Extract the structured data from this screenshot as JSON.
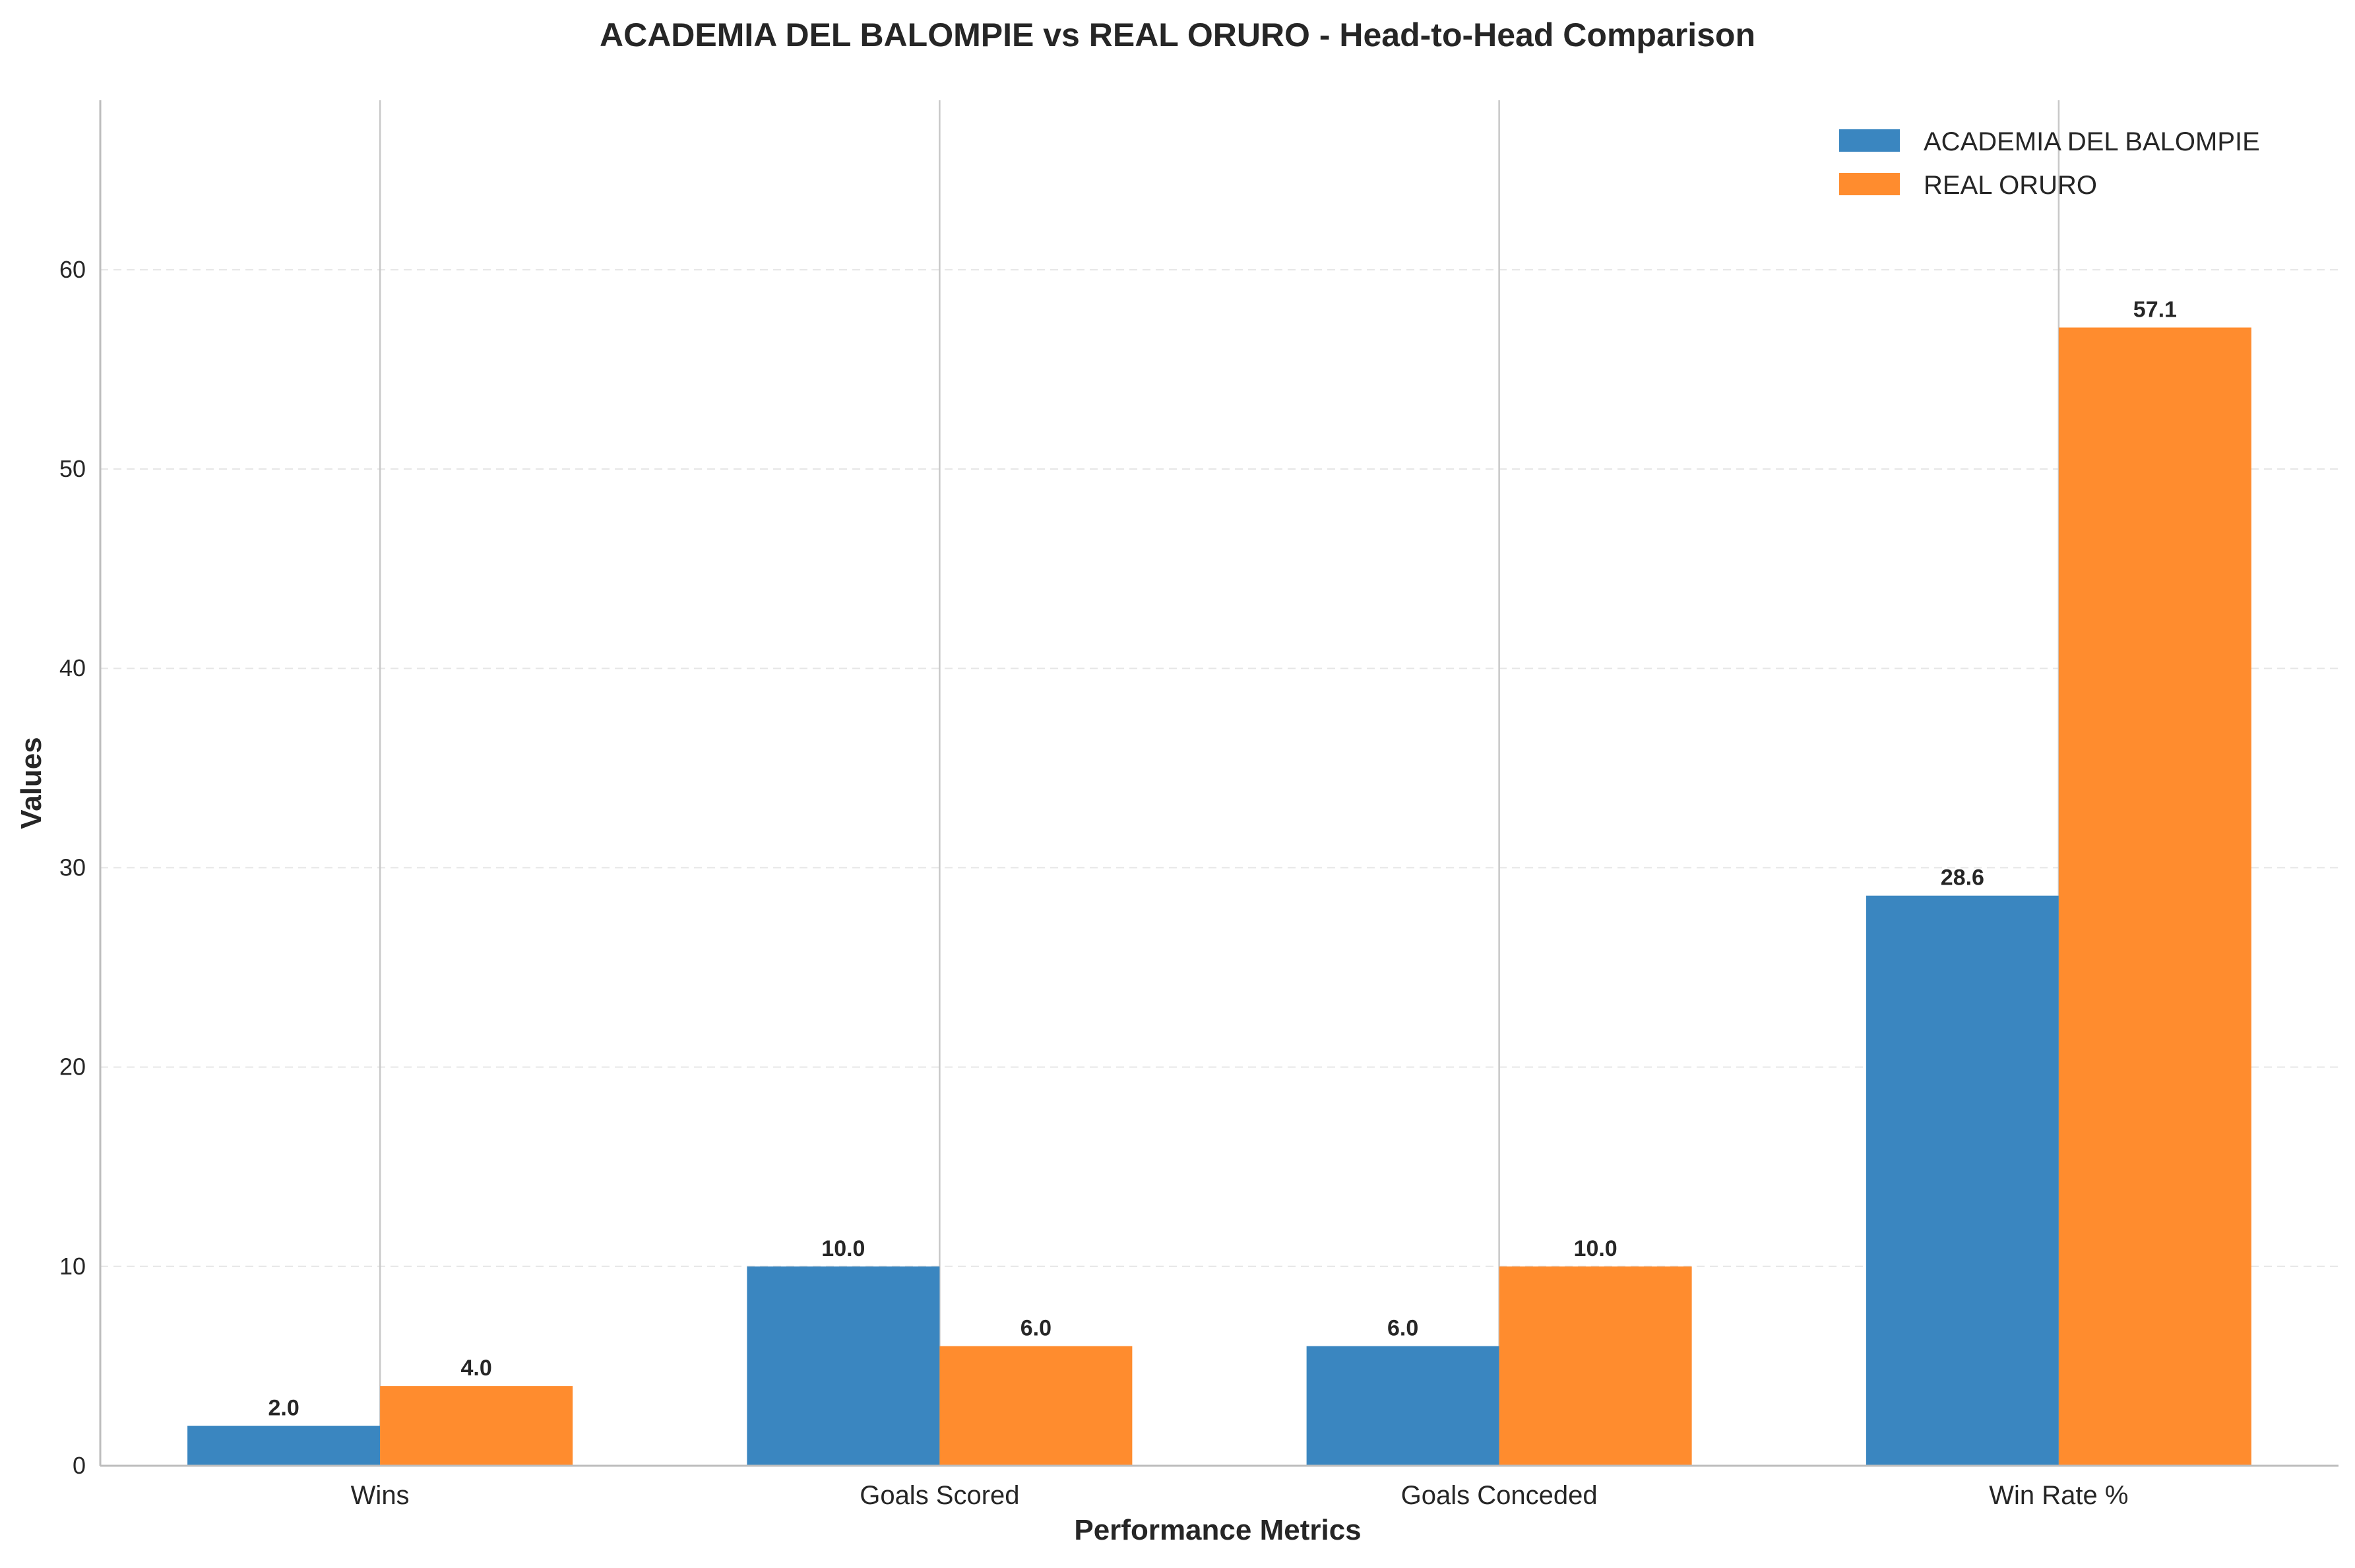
{
  "chart_data": {
    "type": "bar",
    "title": "ACADEMIA DEL BALOMPIE vs REAL ORURO - Head-to-Head Comparison",
    "xlabel": "Performance Metrics",
    "ylabel": "Values",
    "categories": [
      "Wins",
      "Goals Scored",
      "Goals Conceded",
      "Win Rate %"
    ],
    "series": [
      {
        "name": "ACADEMIA DEL BALOMPIE",
        "values": [
          2.0,
          10.0,
          6.0,
          28.6
        ],
        "labels": [
          "2.0",
          "10.0",
          "6.0",
          "28.6"
        ],
        "color": "#3a86c0"
      },
      {
        "name": "REAL ORURO",
        "values": [
          4.0,
          6.0,
          10.0,
          57.1
        ],
        "labels": [
          "4.0",
          "6.0",
          "10.0",
          "57.1"
        ],
        "color": "#ff8c2e"
      }
    ],
    "ylim": [
      0,
      68.5
    ],
    "yticks": [
      "0",
      "10",
      "20",
      "30",
      "40",
      "50",
      "60"
    ],
    "grid": "y-dashed",
    "legend": "top-right"
  }
}
